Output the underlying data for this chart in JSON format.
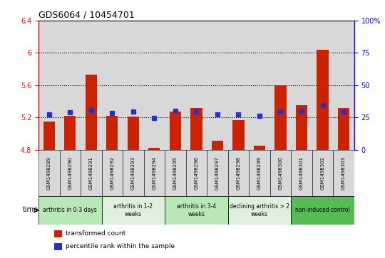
{
  "title": "GDS6064 / 10454701",
  "samples": [
    "GSM1498289",
    "GSM1498290",
    "GSM1498291",
    "GSM1498292",
    "GSM1498293",
    "GSM1498294",
    "GSM1498295",
    "GSM1498296",
    "GSM1498297",
    "GSM1498298",
    "GSM1498299",
    "GSM1498300",
    "GSM1498301",
    "GSM1498302",
    "GSM1498303"
  ],
  "red_values": [
    5.15,
    5.22,
    5.73,
    5.22,
    5.21,
    4.82,
    5.27,
    5.32,
    4.91,
    5.17,
    4.85,
    5.6,
    5.35,
    6.04,
    5.32
  ],
  "blue_values": [
    5.24,
    5.26,
    5.29,
    5.25,
    5.27,
    5.19,
    5.28,
    5.27,
    5.24,
    5.24,
    5.22,
    5.27,
    5.28,
    5.35,
    5.27
  ],
  "ylim_left": [
    4.8,
    6.4
  ],
  "ylim_right": [
    0,
    100
  ],
  "yticks_left": [
    4.8,
    5.2,
    5.6,
    6.0,
    6.4
  ],
  "ytick_labels_left": [
    "4.8",
    "5.2",
    "5.6",
    "6",
    "6.4"
  ],
  "yticks_right": [
    0,
    25,
    50,
    75,
    100
  ],
  "ytick_labels_right": [
    "0",
    "25",
    "50",
    "75",
    "100%"
  ],
  "hlines": [
    5.2,
    5.6,
    6.0
  ],
  "bar_base": 4.8,
  "bar_color": "#cc2200",
  "blue_color": "#2233cc",
  "col_bg_color": "#d8d8d8",
  "groups": [
    {
      "label": "arthritis in 0-3 days",
      "start": 0,
      "end": 3,
      "color": "#b8e8b8"
    },
    {
      "label": "arthritis in 1-2\nweeks",
      "start": 3,
      "end": 6,
      "color": "#dff0df"
    },
    {
      "label": "arthritis in 3-4\nweeks",
      "start": 6,
      "end": 9,
      "color": "#b8e8b8"
    },
    {
      "label": "declining arthritis > 2\nweeks",
      "start": 9,
      "end": 12,
      "color": "#dff0df"
    },
    {
      "label": "non-induced control",
      "start": 12,
      "end": 15,
      "color": "#55bb55"
    }
  ],
  "legend_red": "transformed count",
  "legend_blue": "percentile rank within the sample",
  "bar_width": 0.55
}
